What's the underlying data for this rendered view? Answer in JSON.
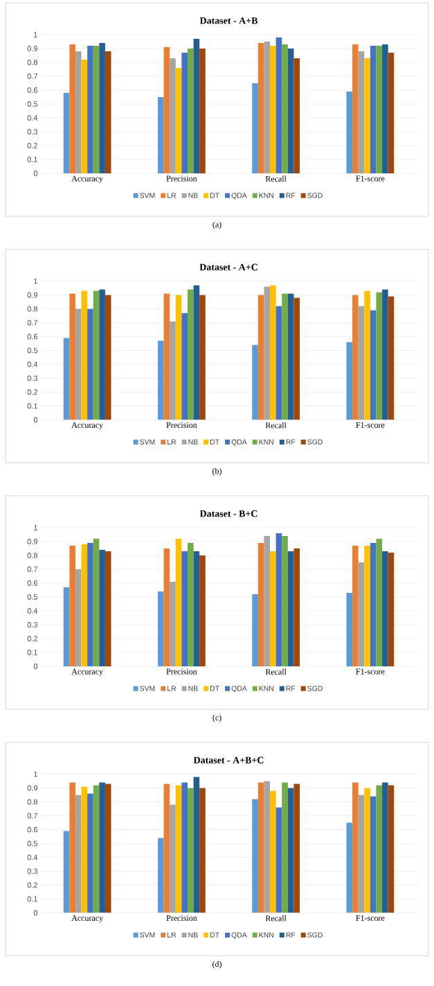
{
  "chart_data": [
    {
      "type": "bar",
      "title": "Dataset - A+B",
      "categories": [
        "Accuracy",
        "Precision",
        "Recall",
        "F1-score"
      ],
      "ylim": [
        0,
        1
      ],
      "yticks": [
        0,
        0.1,
        0.2,
        0.3,
        0.4,
        0.5,
        0.6,
        0.7,
        0.8,
        0.9,
        1
      ],
      "grid": "y",
      "legend": "bottom",
      "annotations": [
        "(a)"
      ],
      "series": [
        {
          "name": "SVM",
          "color": "#5b9bd5",
          "values": [
            0.58,
            0.55,
            0.65,
            0.59
          ]
        },
        {
          "name": "LR",
          "color": "#ed7d31",
          "values": [
            0.93,
            0.91,
            0.94,
            0.93
          ]
        },
        {
          "name": "NB",
          "color": "#a5a5a5",
          "values": [
            0.88,
            0.83,
            0.95,
            0.88
          ]
        },
        {
          "name": "DT",
          "color": "#ffc000",
          "values": [
            0.82,
            0.76,
            0.92,
            0.83
          ]
        },
        {
          "name": "QDA",
          "color": "#4472c4",
          "values": [
            0.92,
            0.87,
            0.98,
            0.92
          ]
        },
        {
          "name": "KNN",
          "color": "#70ad47",
          "values": [
            0.92,
            0.9,
            0.93,
            0.92
          ]
        },
        {
          "name": "RF",
          "color": "#255e91",
          "values": [
            0.94,
            0.97,
            0.9,
            0.93
          ]
        },
        {
          "name": "SGD",
          "color": "#9e480e",
          "values": [
            0.88,
            0.9,
            0.83,
            0.87
          ]
        }
      ]
    },
    {
      "type": "bar",
      "title": "Dataset - A+C",
      "categories": [
        "Accuracy",
        "Precision",
        "Recall",
        "F1-score"
      ],
      "ylim": [
        0,
        1
      ],
      "yticks": [
        0,
        0.1,
        0.2,
        0.3,
        0.4,
        0.5,
        0.6,
        0.7,
        0.8,
        0.9,
        1
      ],
      "grid": "y",
      "legend": "bottom",
      "annotations": [
        "(b)"
      ],
      "series": [
        {
          "name": "SVM",
          "color": "#5b9bd5",
          "values": [
            0.59,
            0.57,
            0.54,
            0.56
          ]
        },
        {
          "name": "LR",
          "color": "#ed7d31",
          "values": [
            0.91,
            0.91,
            0.9,
            0.9
          ]
        },
        {
          "name": "NB",
          "color": "#a5a5a5",
          "values": [
            0.8,
            0.71,
            0.96,
            0.82
          ]
        },
        {
          "name": "DT",
          "color": "#ffc000",
          "values": [
            0.93,
            0.9,
            0.97,
            0.93
          ]
        },
        {
          "name": "QDA",
          "color": "#4472c4",
          "values": [
            0.8,
            0.77,
            0.82,
            0.79
          ]
        },
        {
          "name": "KNN",
          "color": "#70ad47",
          "values": [
            0.93,
            0.94,
            0.91,
            0.92
          ]
        },
        {
          "name": "RF",
          "color": "#255e91",
          "values": [
            0.94,
            0.97,
            0.91,
            0.94
          ]
        },
        {
          "name": "SGD",
          "color": "#9e480e",
          "values": [
            0.9,
            0.9,
            0.88,
            0.89
          ]
        }
      ]
    },
    {
      "type": "bar",
      "title": "Dataset - B+C",
      "categories": [
        "Accuracy",
        "Precision",
        "Recall",
        "F1-score"
      ],
      "ylim": [
        0,
        1
      ],
      "yticks": [
        0,
        0.1,
        0.2,
        0.3,
        0.4,
        0.5,
        0.6,
        0.7,
        0.8,
        0.9,
        1
      ],
      "grid": "y",
      "legend": "bottom",
      "annotations": [
        "(c)"
      ],
      "series": [
        {
          "name": "SVM",
          "color": "#5b9bd5",
          "values": [
            0.57,
            0.54,
            0.52,
            0.53
          ]
        },
        {
          "name": "LR",
          "color": "#ed7d31",
          "values": [
            0.87,
            0.85,
            0.89,
            0.87
          ]
        },
        {
          "name": "NB",
          "color": "#a5a5a5",
          "values": [
            0.7,
            0.61,
            0.94,
            0.75
          ]
        },
        {
          "name": "DT",
          "color": "#ffc000",
          "values": [
            0.88,
            0.92,
            0.83,
            0.87
          ]
        },
        {
          "name": "QDA",
          "color": "#4472c4",
          "values": [
            0.89,
            0.83,
            0.96,
            0.89
          ]
        },
        {
          "name": "KNN",
          "color": "#70ad47",
          "values": [
            0.92,
            0.89,
            0.94,
            0.92
          ]
        },
        {
          "name": "RF",
          "color": "#255e91",
          "values": [
            0.84,
            0.83,
            0.83,
            0.83
          ]
        },
        {
          "name": "SGD",
          "color": "#9e480e",
          "values": [
            0.83,
            0.8,
            0.85,
            0.82
          ]
        }
      ]
    },
    {
      "type": "bar",
      "title": "Dataset - A+B+C",
      "categories": [
        "Accuracy",
        "Precision",
        "Recall",
        "F1-score"
      ],
      "ylim": [
        0,
        1
      ],
      "yticks": [
        0,
        0.1,
        0.2,
        0.3,
        0.4,
        0.5,
        0.6,
        0.7,
        0.8,
        0.9,
        1
      ],
      "grid": "y",
      "legend": "bottom",
      "annotations": [
        "(d)"
      ],
      "series": [
        {
          "name": "SVM",
          "color": "#5b9bd5",
          "values": [
            0.59,
            0.54,
            0.82,
            0.65
          ]
        },
        {
          "name": "LR",
          "color": "#ed7d31",
          "values": [
            0.94,
            0.93,
            0.94,
            0.94
          ]
        },
        {
          "name": "NB",
          "color": "#a5a5a5",
          "values": [
            0.85,
            0.78,
            0.95,
            0.85
          ]
        },
        {
          "name": "DT",
          "color": "#ffc000",
          "values": [
            0.91,
            0.92,
            0.88,
            0.9
          ]
        },
        {
          "name": "QDA",
          "color": "#4472c4",
          "values": [
            0.86,
            0.94,
            0.76,
            0.84
          ]
        },
        {
          "name": "KNN",
          "color": "#70ad47",
          "values": [
            0.92,
            0.9,
            0.94,
            0.92
          ]
        },
        {
          "name": "RF",
          "color": "#255e91",
          "values": [
            0.94,
            0.98,
            0.9,
            0.94
          ]
        },
        {
          "name": "SGD",
          "color": "#9e480e",
          "values": [
            0.93,
            0.9,
            0.93,
            0.92
          ]
        }
      ]
    }
  ]
}
